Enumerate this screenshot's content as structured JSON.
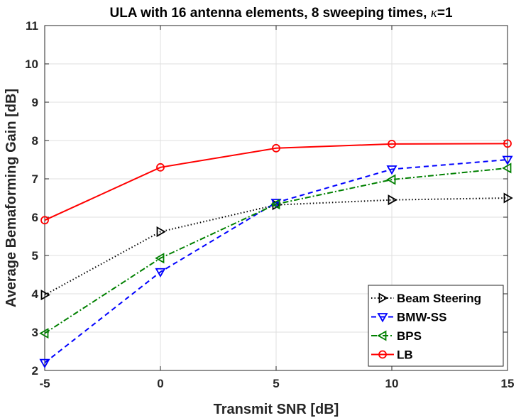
{
  "chart_data": {
    "type": "line",
    "title": "ULA with 16 antenna elements, 8 sweeping times, ",
    "title_kappa": "κ",
    "title_suffix": "=1",
    "xlabel": "Transmit SNR [dB]",
    "ylabel": "Average Bemaforming Gain [dB]",
    "x": [
      -5,
      0,
      5,
      10,
      15
    ],
    "xlim": [
      -5,
      15
    ],
    "ylim": [
      2,
      11
    ],
    "xticks": [
      -5,
      0,
      5,
      10,
      15
    ],
    "yticks": [
      2,
      3,
      4,
      5,
      6,
      7,
      8,
      9,
      10,
      11
    ],
    "grid": true,
    "legend_position": "bottom-right",
    "series": [
      {
        "name": "Beam Steering",
        "values": [
          3.97,
          5.62,
          6.32,
          6.45,
          6.5
        ],
        "color": "#000000",
        "dash": "dotted",
        "marker": "triangle-right"
      },
      {
        "name": "BMW-SS",
        "values": [
          2.2,
          4.57,
          6.38,
          7.25,
          7.5
        ],
        "color": "#0000ff",
        "dash": "dashed",
        "marker": "triangle-down"
      },
      {
        "name": "BPS",
        "values": [
          2.97,
          4.93,
          6.34,
          6.98,
          7.28
        ],
        "color": "#008000",
        "dash": "dashdot",
        "marker": "triangle-left"
      },
      {
        "name": "LB",
        "values": [
          5.92,
          7.3,
          7.8,
          7.91,
          7.92
        ],
        "color": "#ff0000",
        "dash": "solid",
        "marker": "circle"
      }
    ]
  }
}
